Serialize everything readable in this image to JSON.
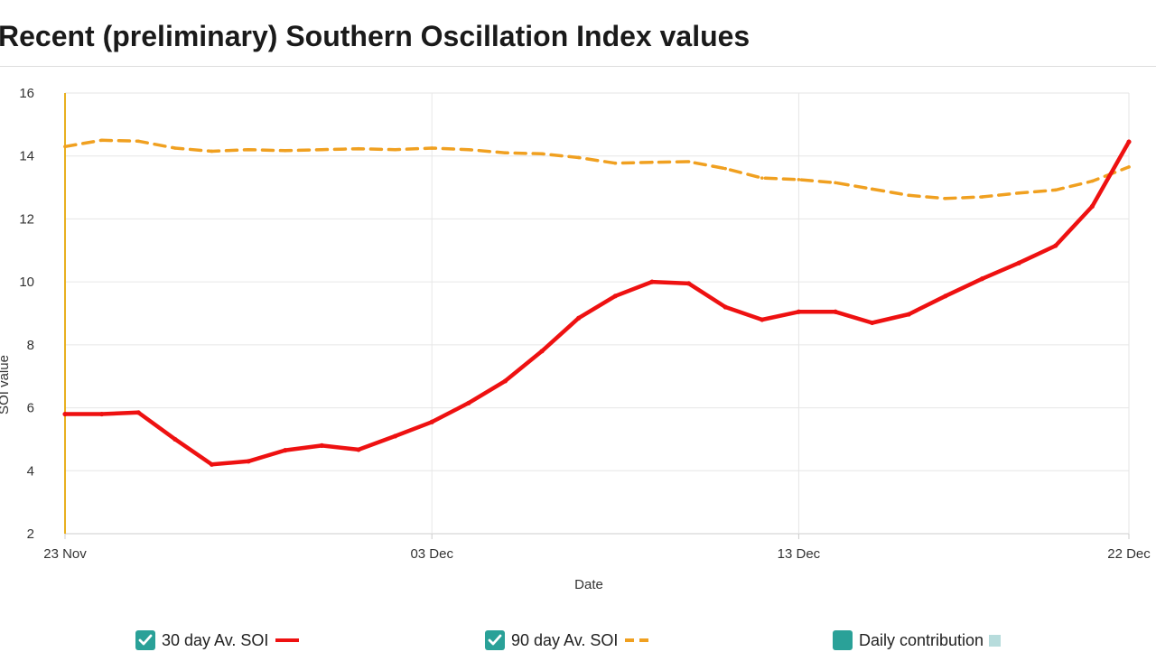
{
  "page": {
    "title": "Recent (preliminary) Southern Oscillation Index values"
  },
  "colors": {
    "soi30": "#ee1111",
    "soi90": "#f0a020",
    "marker": "#e8b020",
    "checkbox": "#2aa198",
    "daily_swatch": "#b7dcdc",
    "grid": "#e6e6e6"
  },
  "legend": {
    "items": [
      {
        "label": "30 day Av. SOI",
        "checked": true,
        "swatch": "solid-red-line"
      },
      {
        "label": "90 day Av. SOI",
        "checked": true,
        "swatch": "dashed-orange-line"
      },
      {
        "label": "Daily contribution",
        "checked": false,
        "swatch": "light-teal-square"
      }
    ]
  },
  "chart_data": {
    "type": "line",
    "title": "Recent (preliminary) Southern Oscillation Index values",
    "xlabel": "Date",
    "ylabel": "SOI value",
    "ylim": [
      2,
      16
    ],
    "yticks": [
      2,
      4,
      6,
      8,
      10,
      12,
      14,
      16
    ],
    "x": [
      "23 Nov",
      "24 Nov",
      "25 Nov",
      "26 Nov",
      "27 Nov",
      "28 Nov",
      "29 Nov",
      "30 Nov",
      "01 Dec",
      "02 Dec",
      "03 Dec",
      "04 Dec",
      "05 Dec",
      "06 Dec",
      "07 Dec",
      "08 Dec",
      "09 Dec",
      "10 Dec",
      "11 Dec",
      "12 Dec",
      "13 Dec",
      "14 Dec",
      "15 Dec",
      "16 Dec",
      "17 Dec",
      "18 Dec",
      "19 Dec",
      "20 Dec",
      "21 Dec",
      "22 Dec"
    ],
    "xticks": [
      "23 Nov",
      "03 Dec",
      "13 Dec",
      "22 Dec"
    ],
    "grid": true,
    "vertical_marker": "23 Nov",
    "legend_position": "bottom",
    "series": [
      {
        "name": "30 day Av. SOI",
        "style": "solid",
        "values": [
          5.8,
          5.8,
          5.85,
          5.0,
          4.2,
          4.3,
          4.65,
          4.8,
          4.67,
          5.1,
          5.55,
          6.15,
          6.85,
          7.8,
          8.85,
          9.55,
          10.0,
          9.95,
          9.2,
          8.8,
          9.05,
          9.05,
          8.7,
          8.97,
          9.55,
          10.1,
          10.6,
          11.15,
          12.4,
          14.45
        ]
      },
      {
        "name": "90 day Av. SOI",
        "style": "dashed",
        "values": [
          14.3,
          14.5,
          14.47,
          14.25,
          14.15,
          14.2,
          14.17,
          14.2,
          14.23,
          14.2,
          14.25,
          14.2,
          14.1,
          14.07,
          13.95,
          13.77,
          13.8,
          13.82,
          13.6,
          13.3,
          13.25,
          13.15,
          12.95,
          12.75,
          12.65,
          12.7,
          12.82,
          12.92,
          13.2,
          13.65
        ]
      }
    ]
  }
}
